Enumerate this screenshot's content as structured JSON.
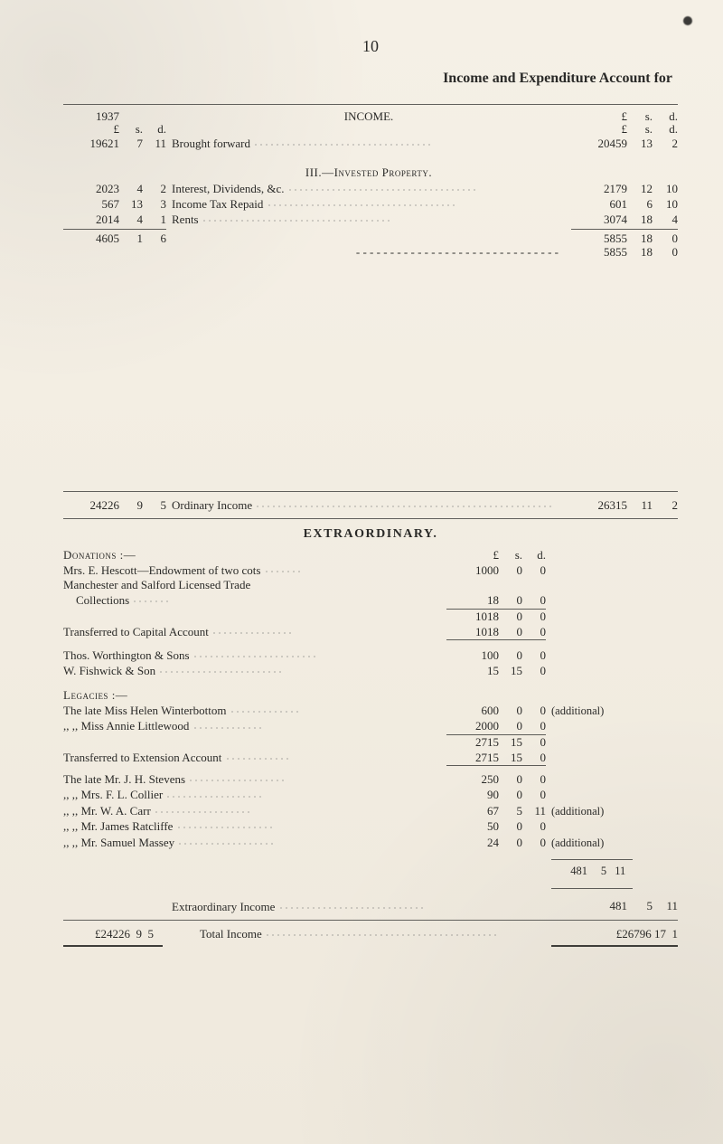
{
  "page_number": "10",
  "heading": "Income and Expenditure Account for",
  "header_cols": {
    "year": "1937",
    "income_label": "INCOME.",
    "psd": [
      "£",
      "s.",
      "d."
    ]
  },
  "brought_forward": {
    "left": {
      "p": "19621",
      "s": "7",
      "d": "11"
    },
    "label": "Brought forward",
    "right_far": {
      "p": "20459",
      "s": "13",
      "d": "2"
    }
  },
  "section_iii": {
    "heading": "III.—Invested Property.",
    "rows": [
      {
        "lp": "2023",
        "ls": "4",
        "ld": "2",
        "label": "Interest, Dividends, &c.",
        "rp": "2179",
        "rs": "12",
        "rd": "10"
      },
      {
        "lp": "567",
        "ls": "13",
        "ld": "3",
        "label": "Income Tax Repaid",
        "rp": "601",
        "rs": "6",
        "rd": "10"
      },
      {
        "lp": "2014",
        "ls": "4",
        "ld": "1",
        "label": "Rents",
        "rp": "3074",
        "rs": "18",
        "rd": "4"
      }
    ],
    "left_total": {
      "p": "4605",
      "s": "1",
      "d": "6"
    },
    "right_total": {
      "p": "5855",
      "s": "18",
      "d": "0"
    },
    "carry_right": {
      "p": "5855",
      "s": "18",
      "d": "0"
    }
  },
  "ordinary_income": {
    "left": {
      "p": "24226",
      "s": "9",
      "d": "5"
    },
    "label": "Ordinary Income",
    "right": {
      "p": "26315",
      "s": "11",
      "d": "2"
    }
  },
  "extraordinary": {
    "heading": "EXTRAORDINARY.",
    "donations_label": "Donations :—",
    "psd": [
      "£",
      "s.",
      "d."
    ],
    "donation_rows": [
      {
        "label": "Mrs. E. Hescott—Endowment of two cots",
        "p": "1000",
        "s": "0",
        "d": "0"
      },
      {
        "label": "Manchester and Salford Licensed Trade",
        "p": "",
        "s": "",
        "d": ""
      },
      {
        "label": "Collections",
        "p": "18",
        "s": "0",
        "d": "0",
        "indent": true
      }
    ],
    "donations_subtotal": {
      "p": "1018",
      "s": "0",
      "d": "0"
    },
    "transferred_capital": {
      "label": "Transferred to Capital Account",
      "p": "1018",
      "s": "0",
      "d": "0"
    },
    "misc_rows": [
      {
        "label": "Thos. Worthington & Sons",
        "p": "100",
        "s": "0",
        "d": "0"
      },
      {
        "label": "W. Fishwick & Son",
        "p": "15",
        "s": "15",
        "d": "0"
      }
    ],
    "legacies_label": "Legacies :—",
    "legacy_rows": [
      {
        "label": "The late Miss Helen Winterbottom",
        "p": "600",
        "s": "0",
        "d": "0",
        "note": "(additional)"
      },
      {
        "label": "  ,,    ,,  Miss Annie Littlewood",
        "p": "2000",
        "s": "0",
        "d": "0",
        "note": ""
      }
    ],
    "legacies_subtotal": {
      "p": "2715",
      "s": "15",
      "d": "0"
    },
    "transferred_extension": {
      "label": "Transferred to Extension Account",
      "p": "2715",
      "s": "15",
      "d": "0"
    },
    "late_rows": [
      {
        "label": "The late Mr. J. H. Stevens",
        "p": "250",
        "s": "0",
        "d": "0",
        "note": ""
      },
      {
        "label": "  ,,    ,,  Mrs. F. L. Collier",
        "p": "90",
        "s": "0",
        "d": "0",
        "note": ""
      },
      {
        "label": "  ,,    ,,  Mr. W. A. Carr",
        "p": "67",
        "s": "5",
        "d": "11",
        "note": "(additional)"
      },
      {
        "label": "  ,,    ,,  Mr. James Ratcliffe",
        "p": "50",
        "s": "0",
        "d": "0",
        "note": ""
      },
      {
        "label": "  ,,    ,,  Mr. Samuel Massey",
        "p": "24",
        "s": "0",
        "d": "0",
        "note": "(additional)"
      }
    ],
    "late_total_side": {
      "p": "481",
      "s": "5",
      "d": "11"
    },
    "extra_income_label": "Extraordinary Income",
    "extra_income_far": {
      "p": "481",
      "s": "5",
      "d": "11"
    }
  },
  "grand_total": {
    "left": "£24226  9  5",
    "label": "Total Income",
    "right": "£26796 17  1"
  },
  "colors": {
    "paper": "#f2ede4",
    "ink": "#2a2a28",
    "rule": "#5d5c58"
  }
}
